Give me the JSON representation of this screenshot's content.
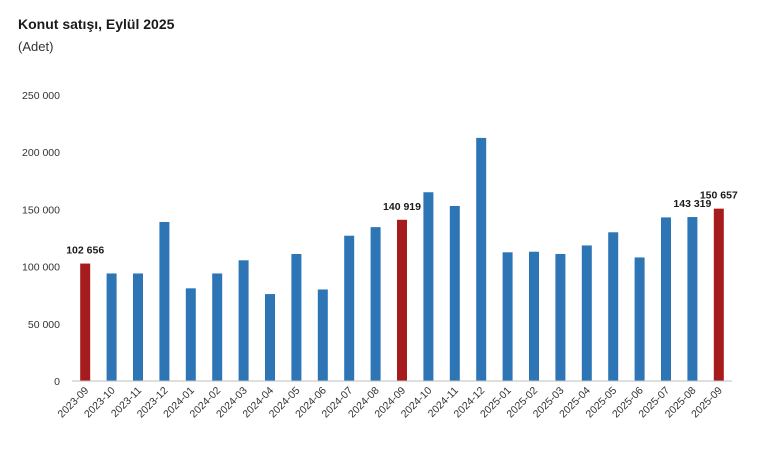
{
  "title": "Konut satışı, Eylül 2025",
  "subtitle": "(Adet)",
  "chart_data": {
    "type": "bar",
    "title": "Konut satışı, Eylül 2025",
    "subtitle": "(Adet)",
    "xlabel": "",
    "ylabel": "",
    "ylim": [
      0,
      250000
    ],
    "yticks": [
      0,
      50000,
      100000,
      150000,
      200000,
      250000
    ],
    "ytick_labels": [
      "0",
      "50 000",
      "100 000",
      "150 000",
      "200 000",
      "250 000"
    ],
    "grid": false,
    "legend": "none",
    "colors": {
      "default": "#2e75b6",
      "highlight": "#a61c1c"
    },
    "categories": [
      "2023-09",
      "2023-10",
      "2023-11",
      "2023-12",
      "2024-01",
      "2024-02",
      "2024-03",
      "2024-04",
      "2024-05",
      "2024-06",
      "2024-07",
      "2024-08",
      "2024-09",
      "2024-10",
      "2024-11",
      "2024-12",
      "2025-01",
      "2025-02",
      "2025-03",
      "2025-04",
      "2025-05",
      "2025-06",
      "2025-07",
      "2025-08",
      "2025-09"
    ],
    "values": [
      102656,
      94000,
      94000,
      139000,
      81000,
      94000,
      105500,
      76000,
      111000,
      80000,
      127000,
      134500,
      140919,
      165000,
      153000,
      212500,
      112500,
      113000,
      111000,
      118500,
      130000,
      108000,
      143000,
      143319,
      150657
    ],
    "highlight": [
      true,
      false,
      false,
      false,
      false,
      false,
      false,
      false,
      false,
      false,
      false,
      false,
      true,
      false,
      false,
      false,
      false,
      false,
      false,
      false,
      false,
      false,
      false,
      false,
      true
    ],
    "data_labels": [
      {
        "index": 0,
        "text": "102 656"
      },
      {
        "index": 12,
        "text": "140 919"
      },
      {
        "index": 23,
        "text": "143 319"
      },
      {
        "index": 24,
        "text": "150 657"
      }
    ]
  }
}
